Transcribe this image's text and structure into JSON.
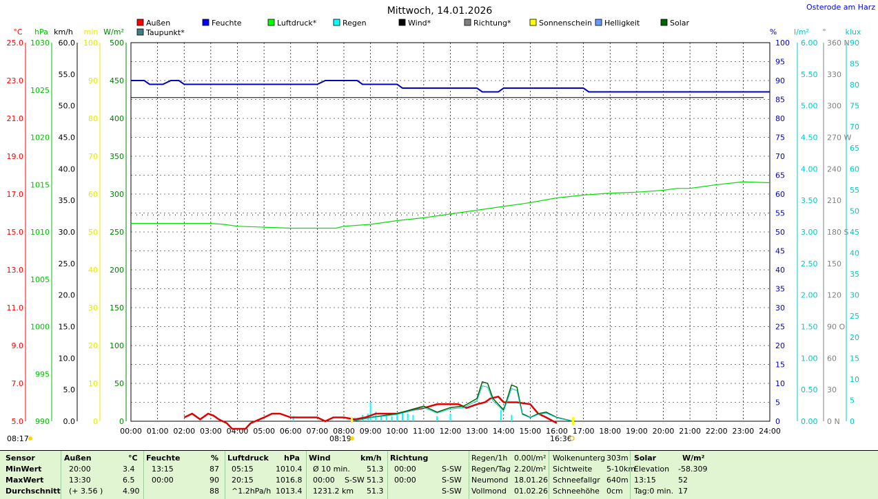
{
  "location": "Osterode am Harz",
  "chart_data": {
    "type": "line",
    "title": "Mittwoch, 14.01.2026",
    "x_ticks": [
      "00:00",
      "01:00",
      "02:00",
      "03:00",
      "04:00",
      "05:00",
      "06:00",
      "07:00",
      "08:00",
      "09:00",
      "10:00",
      "11:00",
      "12:00",
      "13:00",
      "14:00",
      "15:00",
      "16:00",
      "17:00",
      "18:00",
      "19:00",
      "20:00",
      "21:00",
      "22:00",
      "23:00",
      "24:00"
    ],
    "xlim": [
      0,
      24
    ],
    "left_axes": [
      {
        "unit": "°C",
        "color": "#ff0000",
        "ticks": [
          "25.0",
          "23.0",
          "21.0",
          "19.0",
          "17.0",
          "15.0",
          "13.0",
          "11.0",
          "9.0",
          "7.0",
          "5.0"
        ]
      },
      {
        "unit": "hPa",
        "color": "#00c000",
        "ticks": [
          "1030",
          "1025",
          "1020",
          "1015",
          "1010",
          "1005",
          "1000",
          "995",
          "990"
        ]
      },
      {
        "unit": "km/h",
        "color": "#000000",
        "ticks": [
          "60.0",
          "55.0",
          "50.0",
          "45.0",
          "40.0",
          "35.0",
          "30.0",
          "25.0",
          "20.0",
          "15.0",
          "10.0",
          "5.0",
          "0.0"
        ]
      },
      {
        "unit": "min",
        "color": "#e8e800",
        "ticks": [
          "100",
          "90",
          "80",
          "70",
          "60",
          "50",
          "40",
          "30",
          "20",
          "10",
          "0"
        ]
      },
      {
        "unit": "W/m²",
        "color": "#008000",
        "ticks": [
          "500",
          "450",
          "400",
          "350",
          "300",
          "250",
          "200",
          "150",
          "100",
          "50",
          "0"
        ]
      }
    ],
    "right_axes": [
      {
        "unit": "%",
        "color": "#0000c0",
        "ticks": [
          "100",
          "95",
          "90",
          "85",
          "80",
          "75",
          "70",
          "65",
          "60",
          "55",
          "50",
          "45",
          "40",
          "35",
          "30",
          "25",
          "20",
          "15",
          "10",
          "5",
          "0"
        ]
      },
      {
        "unit": "l/m²",
        "color": "#00c8c8",
        "ticks": [
          "6.00",
          "5.50",
          "5.00",
          "4.50",
          "4.00",
          "3.50",
          "3.00",
          "2.50",
          "2.00",
          "1.50",
          "1.00",
          "0.50",
          "0.00"
        ]
      },
      {
        "unit": "°",
        "color": "#808080",
        "ticks": [
          "360 N",
          "330",
          "300",
          "270 W",
          "240",
          "210",
          "180 S",
          "150",
          "120",
          "90 O",
          "60",
          "30",
          "0 N"
        ]
      },
      {
        "unit": "klux",
        "color": "#00c8c8",
        "ticks": [
          "90",
          "85",
          "80",
          "75",
          "70",
          "65",
          "60",
          "55",
          "50",
          "45",
          "40",
          "35",
          "30",
          "25",
          "20",
          "15",
          "10",
          "5",
          "0"
        ]
      }
    ],
    "legend": [
      {
        "label": "Außen",
        "color": "#ff0000"
      },
      {
        "label": "Feuchte",
        "color": "#0000ff"
      },
      {
        "label": "Luftdruck*",
        "color": "#00ff00"
      },
      {
        "label": "Regen",
        "color": "#00ffff"
      },
      {
        "label": "Wind*",
        "color": "#000000"
      },
      {
        "label": "Richtung*",
        "color": "#808080"
      },
      {
        "label": "Sonnenschein",
        "color": "#ffff00"
      },
      {
        "label": "Helligkeit",
        "color": "#6699ff"
      },
      {
        "label": "Solar",
        "color": "#006400"
      },
      {
        "label": "Taupunkt*",
        "color": "#408080"
      }
    ],
    "sunrise": "08:17",
    "sunset": "16:36",
    "solar_noon": "08:19",
    "series": [
      {
        "name": "Feuchte",
        "unit": "%",
        "x": [
          0,
          0.5,
          0.7,
          1.2,
          1.5,
          1.8,
          2.0,
          6.0,
          7.0,
          7.3,
          8.5,
          8.7,
          10.0,
          10.2,
          13.0,
          13.2,
          13.8,
          14.0,
          17.0,
          17.2,
          24.0
        ],
        "y": [
          90,
          90,
          89,
          89,
          90,
          90,
          89,
          89,
          89,
          90,
          90,
          89,
          89,
          88,
          88,
          87,
          87,
          88,
          88,
          87,
          87
        ]
      },
      {
        "name": "Luftdruck*",
        "unit": "hPa",
        "x": [
          0,
          1,
          2,
          3,
          3.5,
          4,
          5,
          6,
          7,
          7.7,
          8,
          9,
          10,
          11,
          12,
          13,
          14,
          15,
          16,
          17,
          18,
          19,
          20,
          20.5,
          21,
          22,
          23,
          24
        ],
        "y": [
          1010.9,
          1010.9,
          1010.9,
          1010.9,
          1010.8,
          1010.6,
          1010.5,
          1010.4,
          1010.4,
          1010.4,
          1010.6,
          1010.8,
          1011.2,
          1011.5,
          1011.9,
          1012.3,
          1012.7,
          1013.1,
          1013.6,
          1013.9,
          1014.1,
          1014.2,
          1014.4,
          1014.6,
          1014.6,
          1015.0,
          1015.3,
          1015.2
        ]
      },
      {
        "name": "Außen",
        "unit": "°C",
        "x": [
          0,
          1,
          1.9,
          2.0,
          2.3,
          2.6,
          2.9,
          3.1,
          3.3,
          3.6,
          3.8,
          4.3,
          4.5,
          5.0,
          5.3,
          5.6,
          6.0,
          7.0,
          7.3,
          7.6,
          8.0,
          8.4,
          8.8,
          9.2,
          9.5,
          10.0,
          10.3,
          10.6,
          11.0,
          11.5,
          12.0,
          12.3,
          12.6,
          13.0,
          13.3,
          13.5,
          13.8,
          14.0,
          14.5,
          15.0,
          15.3,
          15.6,
          16.0,
          24
        ],
        "y": [
          null,
          null,
          null,
          5.2,
          5.4,
          5.1,
          5.4,
          5.3,
          5.1,
          4.9,
          4.6,
          4.6,
          4.9,
          5.2,
          5.4,
          5.4,
          5.2,
          5.2,
          5.0,
          5.2,
          5.2,
          5.1,
          5.2,
          5.4,
          5.4,
          5.4,
          5.5,
          5.6,
          5.7,
          5.9,
          5.9,
          5.9,
          5.7,
          5.9,
          6.0,
          6.2,
          6.3,
          6.0,
          6.0,
          5.9,
          5.4,
          5.2,
          4.9,
          null
        ]
      },
      {
        "name": "Solar",
        "unit": "W/m²",
        "x": [
          8.3,
          9,
          10,
          10.5,
          11,
          11.5,
          12,
          12.5,
          13,
          13.2,
          13.4,
          13.6,
          14,
          14.3,
          14.5,
          14.7,
          15,
          15.3,
          15.6,
          16,
          16.6
        ],
        "y": [
          0,
          5,
          10,
          15,
          20,
          12,
          18,
          20,
          30,
          52,
          50,
          30,
          15,
          48,
          45,
          10,
          5,
          10,
          12,
          5,
          0
        ]
      }
    ],
    "rain_bars": {
      "unit": "l/m²",
      "x": [
        6.1,
        8.4,
        8.7,
        8.9,
        9.0,
        9.2,
        9.4,
        9.6,
        9.8,
        10.0,
        10.2,
        10.4,
        10.6,
        11.5,
        12.0,
        13.9,
        14.3
      ],
      "y": [
        0.08,
        0.06,
        0.1,
        0.12,
        0.3,
        0.15,
        0.08,
        0.1,
        0.08,
        0.12,
        0.15,
        0.12,
        0.1,
        0.08,
        0.12,
        0.18,
        0.1
      ]
    },
    "dotted_level_percent": 54.5,
    "black_line_percent": 85.5
  },
  "stats": {
    "headers": [
      "Sensor",
      "Außen",
      "°C",
      "Feuchte",
      "%",
      "Luftdruck",
      "hPa",
      "Wind",
      "km/h",
      "Richtung"
    ],
    "rows": [
      {
        "label": "MinWert",
        "aussen_time": "20:00",
        "aussen_val": "3.4",
        "feuchte_time": "13:15",
        "feuchte_val": "87",
        "druck_time": "05:15",
        "druck_val": "1010.4",
        "wind_a": "Ø 10 min.",
        "wind_val": "51.3",
        "richt_time": "00:00",
        "richt_val": "S-SW"
      },
      {
        "label": "MaxWert",
        "aussen_time": "13:30",
        "aussen_val": "6.5",
        "feuchte_time": "00:00",
        "feuchte_val": "90",
        "druck_time": "20:15",
        "druck_val": "1016.8",
        "wind_a": "00:00",
        "wind_b": "S-SW",
        "wind_val": "51.3",
        "richt_time": "00:00",
        "richt_val": "S-SW"
      },
      {
        "label": "Durchschnitt",
        "aussen_time": "(+ 3.56 )",
        "aussen_val": "4.90",
        "feuchte_time": "",
        "feuchte_val": "88",
        "druck_time": "^1.2hPa/h",
        "druck_val": "1013.4",
        "wind_a": "1231.2 km",
        "wind_val": "51.3",
        "richt_time": "",
        "richt_val": "S-SW"
      }
    ],
    "regen": [
      {
        "label": "Regen/1h",
        "val": "0.00l/m²"
      },
      {
        "label": "Regen/Tag",
        "val": "2.20l/m²"
      },
      {
        "label": "Neumond",
        "val": "18.01.26"
      },
      {
        "label": "Vollmond",
        "val": "01.02.26"
      }
    ],
    "wolken": [
      {
        "label": "Wolkenunterg",
        "val": "303m"
      },
      {
        "label": "Sichtweite",
        "val": "5-10km"
      },
      {
        "label": "Schneefallgr",
        "val": "640m"
      },
      {
        "label": "Schneehöhe",
        "val": "0cm"
      }
    ],
    "solar": {
      "header": "Solar",
      "unit": "W/m²",
      "rows": [
        {
          "a": "Elevation",
          "b": "-58.309"
        },
        {
          "a": "13:15",
          "b": "52"
        },
        {
          "a": "Tag:0 min.",
          "b": "17"
        }
      ]
    }
  }
}
